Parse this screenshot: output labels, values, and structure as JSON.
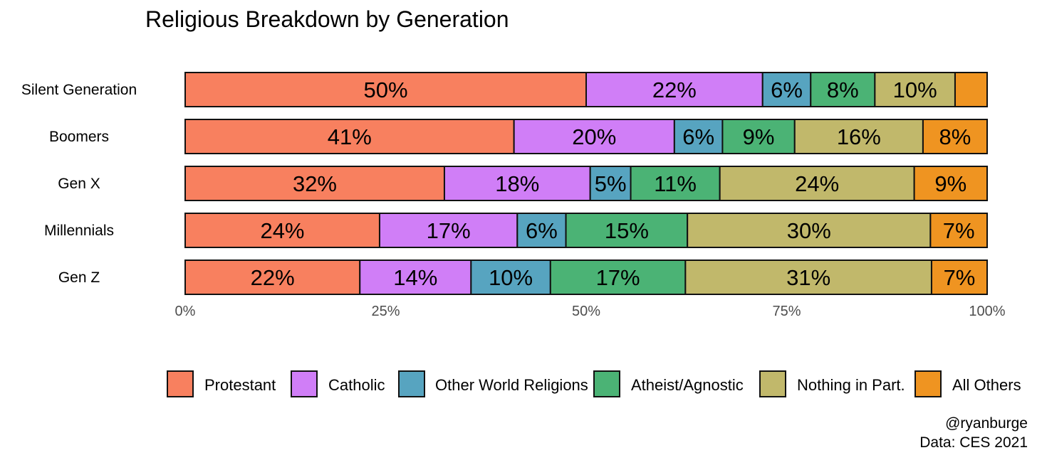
{
  "chart_data": {
    "type": "bar",
    "orientation": "horizontal",
    "stacked": true,
    "title": "Religious Breakdown by Generation",
    "categories": [
      "Silent Generation",
      "Boomers",
      "Gen X",
      "Millennials",
      "Gen Z"
    ],
    "series": [
      {
        "name": "Protestant",
        "color": "#f8805f",
        "values": [
          50,
          41,
          32,
          24,
          22
        ],
        "labels": [
          "50%",
          "41%",
          "32%",
          "24%",
          "22%"
        ]
      },
      {
        "name": "Catholic",
        "color": "#d07ef7",
        "values": [
          22,
          20,
          18,
          17,
          14
        ],
        "labels": [
          "22%",
          "20%",
          "18%",
          "17%",
          "14%"
        ]
      },
      {
        "name": "Other World Religions",
        "color": "#57a4c0",
        "values": [
          6,
          6,
          5,
          6,
          10
        ],
        "labels": [
          "6%",
          "6%",
          "5%",
          "6%",
          "10%"
        ]
      },
      {
        "name": "Atheist/Agnostic",
        "color": "#4bb375",
        "values": [
          8,
          9,
          11,
          15,
          17
        ],
        "labels": [
          "8%",
          "9%",
          "11%",
          "15%",
          "17%"
        ]
      },
      {
        "name": "Nothing in Part.",
        "color": "#c1b86b",
        "values": [
          10,
          16,
          24,
          30,
          31
        ],
        "labels": [
          "10%",
          "16%",
          "24%",
          "30%",
          "31%"
        ]
      },
      {
        "name": "All Others",
        "color": "#ef9421",
        "values": [
          4,
          8,
          9,
          7,
          7
        ],
        "labels": [
          "",
          "8%",
          "9%",
          "7%",
          "7%"
        ]
      }
    ],
    "xticks": [
      "0%",
      "25%",
      "50%",
      "75%",
      "100%"
    ],
    "xlim": [
      0,
      100
    ],
    "legend_position": "bottom"
  },
  "caption": {
    "line1": "@ryanburge",
    "line2": "Data: CES 2021"
  }
}
